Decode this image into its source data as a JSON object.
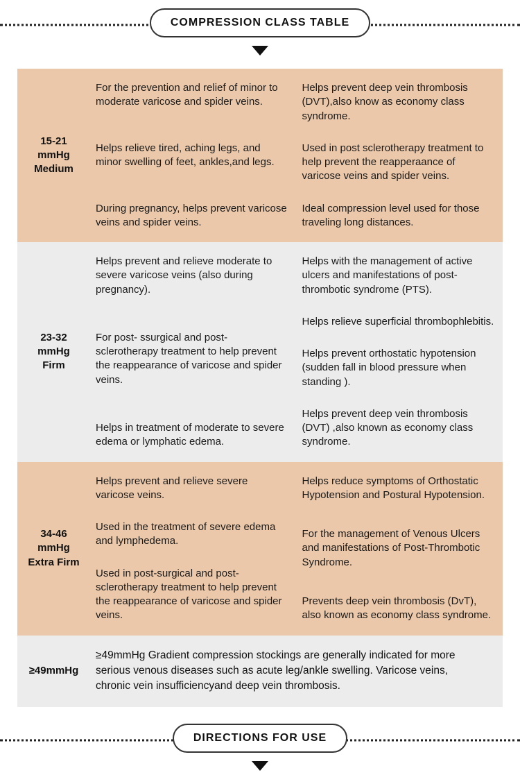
{
  "section_title_1": "COMPRESSION CLASS TABLE",
  "section_title_2": "DIRECTIONS FOR USE",
  "colors": {
    "orange": "#ebc8a9",
    "grey": "#ececec",
    "text": "#111111"
  },
  "rows": [
    {
      "level_line1": "15-21",
      "level_line2": "mmHg",
      "level_line3": "Medium",
      "left": [
        "For the prevention and relief of minor to moderate varicose and spider veins.",
        "Helps relieve tired, aching legs, and minor swelling of feet, ankles,and legs.",
        "During pregnancy, helps prevent varicose veins and spider veins."
      ],
      "right": [
        "Helps prevent deep vein thrombosis (DVT),also know as economy class syndrome.",
        "Used in post sclerotherapy treatment to help prevent the reapperaance of varicose veins and spider veins.",
        "Ideal compression level used for those traveling long distances."
      ]
    },
    {
      "level_line1": "23-32",
      "level_line2": "mmHg",
      "level_line3": "Firm",
      "left": [
        "Helps prevent and relieve moderate to severe varicose veins (also during pregnancy).",
        "For post- ssurgical and post- sclerotherapy treatment to help prevent the reappearance of varicose and spider veins.",
        "Helps in treatment of moderate to severe edema or lymphatic edema."
      ],
      "right": [
        "Helps with the management of active ulcers and manifestations of post-thrombotic syndrome (PTS).",
        "Helps relieve superficial thrombophlebitis.",
        "Helps prevent orthostatic hypotension (sudden fall in blood pressure when standing ).",
        "Helps prevent deep vein thrombosis (DVT) ,also known as economy class syndrome."
      ]
    },
    {
      "level_line1": "34-46",
      "level_line2": "mmHg",
      "level_line3": "Extra Firm",
      "left": [
        "Helps prevent and relieve severe varicose veins.",
        "Used in the treatment of severe edema and lymphedema.",
        "Used in post-surgical and post-sclerotherapy treatment to help prevent the reappearance of varicose and spider veins."
      ],
      "right": [
        "Helps reduce symptoms of Orthostatic Hypotension and Postural Hypotension.",
        "For the management of Venous Ulcers and manifestations of Post-Thrombotic Syndrome.",
        "Prevents deep vein thrombosis (DvT), also known as economy class syndrome."
      ]
    },
    {
      "level_line1": "≥49mmHg",
      "single": "≥49mmHg Gradient compression stockings are generally indicated for more serious venous diseases such as acute leg/ankle swelling. Varicose veins, chronic vein insufficiencyand deep vein thrombosis."
    }
  ]
}
